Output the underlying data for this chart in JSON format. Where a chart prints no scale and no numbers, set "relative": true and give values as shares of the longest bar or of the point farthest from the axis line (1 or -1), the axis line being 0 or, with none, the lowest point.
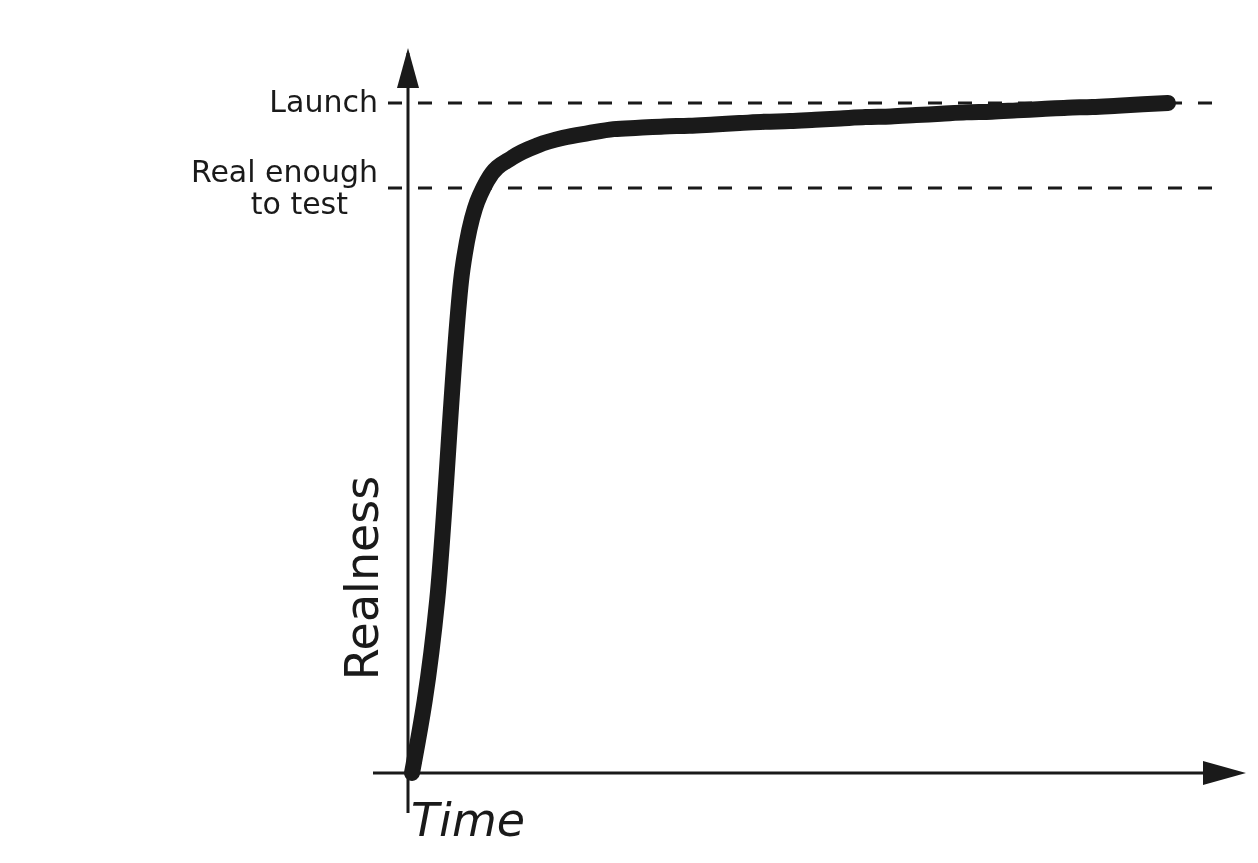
{
  "chart_data": {
    "type": "line",
    "relative": true,
    "xlabel": "Time",
    "ylabel": "Realness",
    "color": "#1a1a1a",
    "categories": [
      null,
      null,
      null,
      null,
      null,
      null,
      null,
      null,
      null,
      null,
      null,
      null,
      null,
      null,
      null,
      null,
      null,
      null,
      null,
      null,
      null,
      null,
      null,
      null,
      null,
      null,
      null,
      null,
      null,
      null,
      null
    ],
    "values": [
      0,
      0.258,
      0.751,
      0.885,
      0.919,
      0.937,
      0.948,
      0.955,
      0.961,
      0.963,
      0.965,
      0.966,
      0.968,
      0.97,
      0.972,
      0.973,
      0.975,
      0.977,
      0.979,
      0.98,
      0.982,
      0.984,
      0.986,
      0.987,
      0.989,
      0.991,
      0.993,
      0.994,
      0.996,
      0.998,
      1
    ],
    "ref_lines": [
      {
        "axis": "y",
        "value": 1,
        "label": "Launch",
        "line_style": "dashed",
        "color": "#1a1a1a"
      },
      {
        "axis": "y",
        "value": 0.873,
        "label": "Real enough to test",
        "line_style": "dashed",
        "color": "#1a1a1a"
      }
    ]
  }
}
